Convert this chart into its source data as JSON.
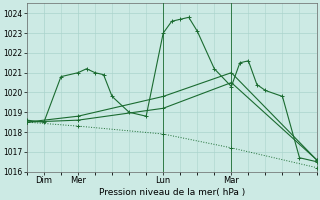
{
  "xlabel": "Pression niveau de la mer( hPa )",
  "ylim": [
    1016,
    1024.5
  ],
  "yticks": [
    1016,
    1017,
    1018,
    1019,
    1020,
    1021,
    1022,
    1023,
    1024
  ],
  "background_color": "#cceae4",
  "grid_color": "#aad4cc",
  "line_color": "#1a6b30",
  "day_labels": [
    "Dim",
    "Mer",
    "Lun",
    "Mar"
  ],
  "day_positions": [
    1,
    3,
    8,
    12
  ],
  "vline_positions": [
    8,
    12
  ],
  "xlim": [
    0,
    17
  ],
  "line1_x": [
    0,
    1,
    2,
    3,
    3.5,
    4,
    4.5,
    5,
    6,
    7,
    8,
    8.5,
    9,
    9.5,
    10,
    11,
    12,
    12.5,
    13,
    13.5,
    14,
    15,
    16,
    17
  ],
  "line1_y": [
    1018.6,
    1018.5,
    1020.8,
    1021.0,
    1021.2,
    1021.0,
    1020.9,
    1019.8,
    1019.0,
    1018.8,
    1023.0,
    1023.6,
    1023.7,
    1023.8,
    1023.1,
    1021.2,
    1020.3,
    1021.5,
    1021.6,
    1020.4,
    1020.1,
    1019.8,
    1016.7,
    1016.5
  ],
  "line2_x": [
    0,
    3,
    8,
    12,
    17
  ],
  "line2_y": [
    1018.5,
    1018.6,
    1019.2,
    1020.5,
    1016.6
  ],
  "line3_x": [
    0,
    3,
    8,
    12,
    17
  ],
  "line3_y": [
    1018.5,
    1018.8,
    1019.8,
    1021.0,
    1016.6
  ],
  "line4_x": [
    0,
    3,
    8,
    12,
    17
  ],
  "line4_y": [
    1018.5,
    1018.3,
    1017.9,
    1017.2,
    1016.2
  ]
}
